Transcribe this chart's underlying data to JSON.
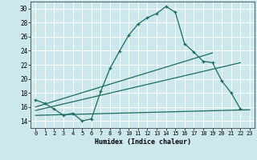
{
  "xlabel": "Humidex (Indice chaleur)",
  "xlim": [
    -0.5,
    23.5
  ],
  "ylim": [
    13,
    31
  ],
  "yticks": [
    14,
    16,
    18,
    20,
    22,
    24,
    26,
    28,
    30
  ],
  "xticks": [
    0,
    1,
    2,
    3,
    4,
    5,
    6,
    7,
    8,
    9,
    10,
    11,
    12,
    13,
    14,
    15,
    16,
    17,
    18,
    19,
    20,
    21,
    22,
    23
  ],
  "bg_color": "#cce8ed",
  "grid_color": "#ffffff",
  "line_color": "#1a6b60",
  "line1_x": [
    0,
    1,
    2,
    3,
    4,
    5,
    6,
    7,
    8,
    9,
    10,
    11,
    12,
    13,
    14,
    15,
    16,
    17,
    18,
    19,
    20,
    21,
    22
  ],
  "line1_y": [
    17.0,
    16.5,
    15.7,
    14.8,
    15.1,
    14.0,
    14.3,
    18.2,
    21.5,
    23.9,
    26.2,
    27.8,
    28.7,
    29.3,
    30.3,
    29.5,
    25.0,
    23.8,
    22.5,
    22.3,
    19.7,
    18.0,
    15.7
  ],
  "line2_x": [
    0,
    19
  ],
  "line2_y": [
    16.0,
    23.7
  ],
  "line3_x": [
    0,
    22
  ],
  "line3_y": [
    15.5,
    22.3
  ],
  "line4_x": [
    0,
    23
  ],
  "line4_y": [
    14.8,
    15.6
  ]
}
